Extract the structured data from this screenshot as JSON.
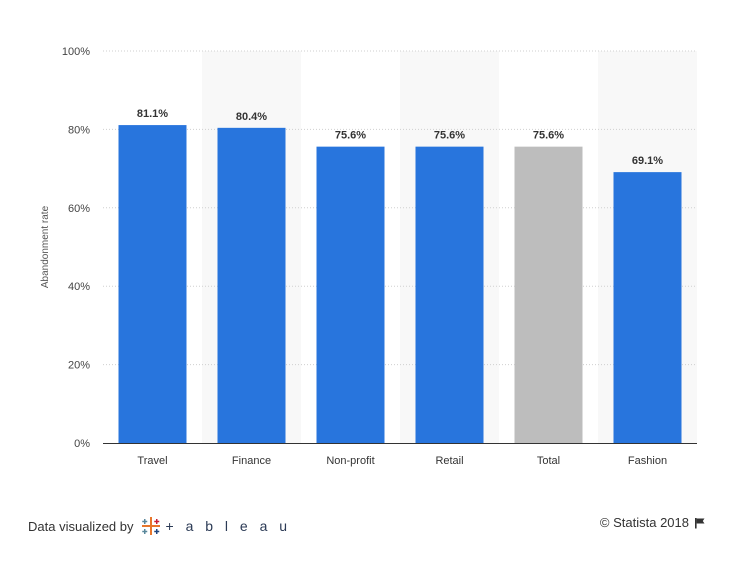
{
  "chart_data": {
    "type": "bar",
    "categories": [
      "Travel",
      "Finance",
      "Non-profit",
      "Retail",
      "Total",
      "Fashion"
    ],
    "values": [
      81.1,
      80.4,
      75.6,
      75.6,
      75.6,
      69.1
    ],
    "data_labels": [
      "81.1%",
      "80.4%",
      "75.6%",
      "75.6%",
      "75.6%",
      "69.1%"
    ],
    "highlighted_category": "Total",
    "ylabel": "Abandonment rate",
    "xlabel": "",
    "ylim": [
      0,
      100
    ],
    "yticks": [
      0,
      20,
      40,
      60,
      80,
      100
    ],
    "ytick_labels": [
      "0%",
      "20%",
      "40%",
      "60%",
      "80%",
      "100%"
    ],
    "grid": true,
    "colors": {
      "bar": "#2875dd",
      "highlight_bar": "#bdbdbd",
      "band": "#f8f8f8",
      "grid": "#cfcfcf",
      "axis": "#333333"
    }
  },
  "footer": {
    "visualized_by": "Data visualized by",
    "tableau_word": "+ a b l e a u",
    "tableau_icon": "tableau-cross-logo",
    "copyright": "© Statista 2018",
    "flag_icon": "flag-icon"
  }
}
